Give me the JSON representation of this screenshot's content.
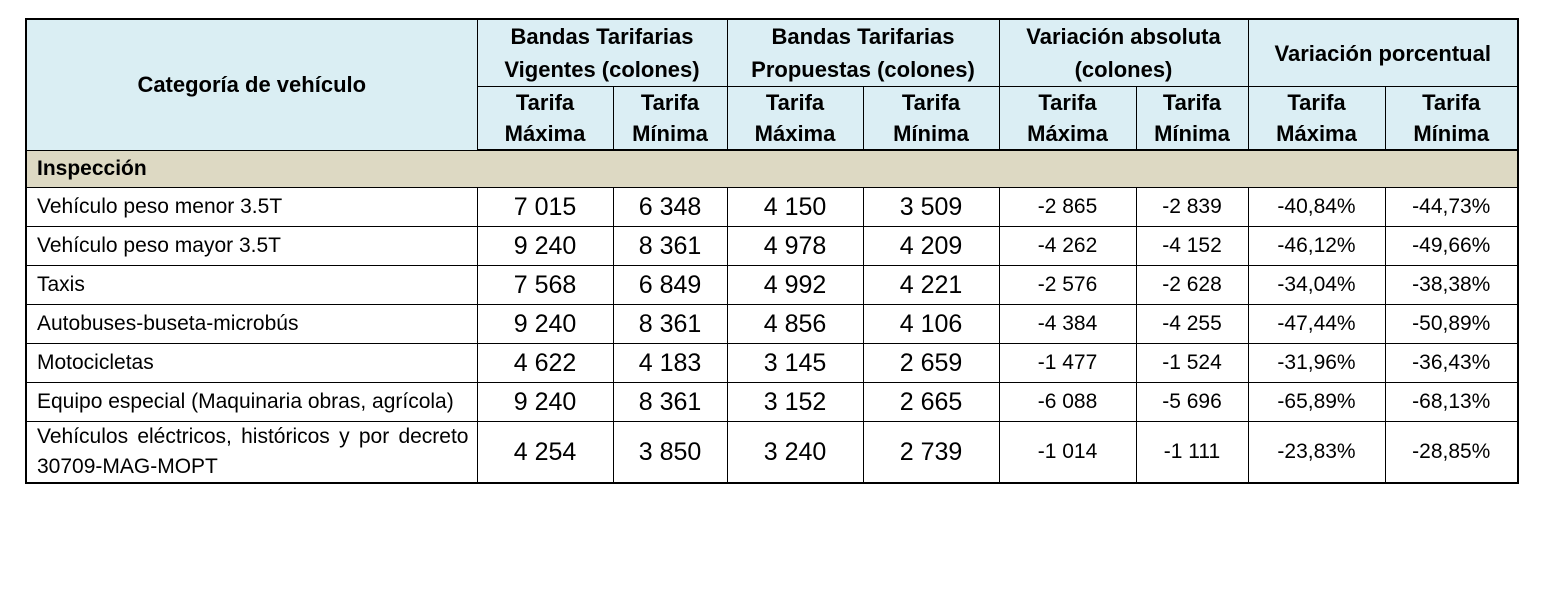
{
  "header": {
    "category": "Categoría de vehículo",
    "groups": [
      "Bandas Tarifarias Vigentes (colones)",
      "Bandas Tarifarias Propuestas (colones)",
      "Variación absoluta (colones)",
      "Variación porcentual"
    ],
    "sub": [
      "Tarifa Máxima",
      "Tarifa Mínima",
      "Tarifa Máxima",
      "Tarifa Mínima",
      "Tarifa Máxima",
      "Tarifa Mínima",
      "Tarifa Máxima",
      "Tarifa Mínima"
    ]
  },
  "section": "Inspección",
  "table": {
    "rows": [
      [
        "Vehículo peso menor 3.5T",
        "7 015",
        "6 348",
        "4 150",
        "3 509",
        "-2 865",
        "-2 839",
        "-40,84%",
        "-44,73%"
      ],
      [
        "Vehículo peso mayor 3.5T",
        "9 240",
        "8 361",
        "4 978",
        "4 209",
        "-4 262",
        "-4 152",
        "-46,12%",
        "-49,66%"
      ],
      [
        "Taxis",
        "7 568",
        "6 849",
        "4 992",
        "4 221",
        "-2 576",
        "-2 628",
        "-34,04%",
        "-38,38%"
      ],
      [
        "Autobuses-buseta-microbús",
        "9 240",
        "8 361",
        "4 856",
        "4 106",
        "-4 384",
        "-4 255",
        "-47,44%",
        "-50,89%"
      ],
      [
        "Motocicletas",
        "4 622",
        "4 183",
        "3 145",
        "2 659",
        "-1 477",
        "-1 524",
        "-31,96%",
        "-36,43%"
      ],
      [
        "Equipo especial (Maquinaria obras, agrícola)",
        "9 240",
        "8 361",
        "3 152",
        "2 665",
        "-6 088",
        "-5 696",
        "-65,89%",
        "-68,13%"
      ],
      [
        "Vehículos eléctricos, históricos y por decreto 30709-MAG-MOPT",
        "4 254",
        "3 850",
        "3 240",
        "2 739",
        "-1 014",
        "-1 111",
        "-23,83%",
        "-28,85%"
      ]
    ]
  }
}
